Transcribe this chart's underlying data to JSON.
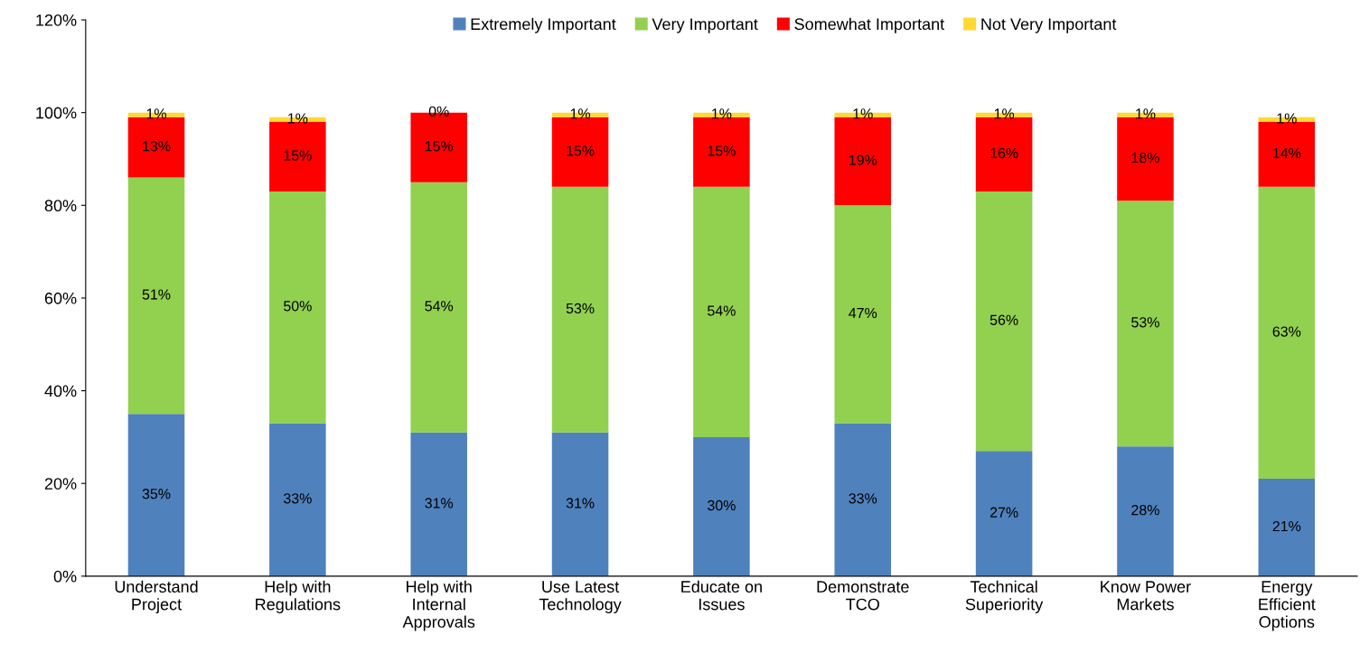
{
  "chart_data": {
    "type": "bar",
    "stacked": true,
    "grid": false,
    "legend": "top",
    "categories": [
      "Understand\nProject",
      "Help with\nRegulations",
      "Help with\nInternal\nApprovals",
      "Use Latest\nTechnology",
      "Educate on\nIssues",
      "Demonstrate\nTCO",
      "Technical\nSuperiority",
      "Know Power\nMarkets",
      "Energy\nEfficient\nOptions"
    ],
    "ylim": [
      0,
      120
    ],
    "yticks": [
      {
        "value": 0,
        "label": "0%"
      },
      {
        "value": 20,
        "label": "20%"
      },
      {
        "value": 40,
        "label": "40%"
      },
      {
        "value": 60,
        "label": "60%"
      },
      {
        "value": 80,
        "label": "80%"
      },
      {
        "value": 100,
        "label": "100%"
      },
      {
        "value": 120,
        "label": "120%"
      }
    ],
    "series": [
      {
        "name": "Extremely Important",
        "color": "#4f81bd",
        "values": [
          35,
          33,
          31,
          31,
          30,
          33,
          27,
          28,
          21
        ],
        "value_labels": [
          "35%",
          "33%",
          "31%",
          "31%",
          "30%",
          "33%",
          "27%",
          "28%",
          "21%"
        ]
      },
      {
        "name": "Very Important",
        "color": "#92d050",
        "values": [
          51,
          50,
          54,
          53,
          54,
          47,
          56,
          53,
          63
        ],
        "value_labels": [
          "51%",
          "50%",
          "54%",
          "53%",
          "54%",
          "47%",
          "56%",
          "53%",
          "63%"
        ]
      },
      {
        "name": "Somewhat Important",
        "color": "#ff0000",
        "values": [
          13,
          15,
          15,
          15,
          15,
          19,
          16,
          18,
          14
        ],
        "value_labels": [
          "13%",
          "15%",
          "15%",
          "15%",
          "15%",
          "19%",
          "16%",
          "18%",
          "14%"
        ]
      },
      {
        "name": "Not Very Important",
        "color": "#ffd932",
        "values": [
          1,
          1,
          0,
          1,
          1,
          1,
          1,
          1,
          1
        ],
        "value_labels": [
          "1%",
          "1%",
          "0%",
          "1%",
          "1%",
          "1%",
          "1%",
          "1%",
          "1%"
        ]
      }
    ]
  }
}
